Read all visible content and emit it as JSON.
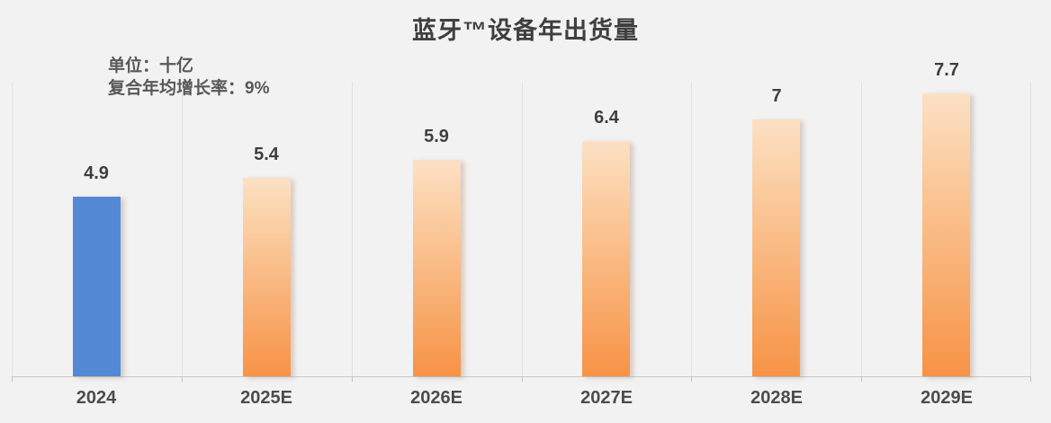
{
  "title": "蓝牙™设备年出货量",
  "subtitle": {
    "unit_line": "单位：十亿",
    "cagr_line": "复合年均增长率：9%"
  },
  "chart_data": {
    "type": "bar",
    "title": "蓝牙™设备年出货量",
    "categories": [
      "2024",
      "2025E",
      "2026E",
      "2027E",
      "2028E",
      "2029E"
    ],
    "values": [
      4.9,
      5.4,
      5.9,
      6.4,
      7,
      7.7
    ],
    "data_labels": [
      "4.9",
      "5.4",
      "5.9",
      "6.4",
      "7",
      "7.7"
    ],
    "bar_types": [
      "actual",
      "estimate",
      "estimate",
      "estimate",
      "estimate",
      "estimate"
    ],
    "unit": "十亿",
    "cagr": "9%",
    "xlabel": "",
    "ylabel": "",
    "ylim": [
      0,
      8
    ],
    "grid": "vertical-category-boundaries",
    "legend": "none",
    "colors": {
      "actual_bar": "#5389D4",
      "estimate_bar_top": "#FCE0C5",
      "estimate_bar_bottom": "#F79346",
      "background": "#F2F2F2",
      "gridline": "#E2E1E0",
      "axis_line": "#C8C8C8",
      "title_text": "#3F3F3F",
      "subtitle_text": "#585858",
      "label_text": "#3F3F3F"
    }
  }
}
